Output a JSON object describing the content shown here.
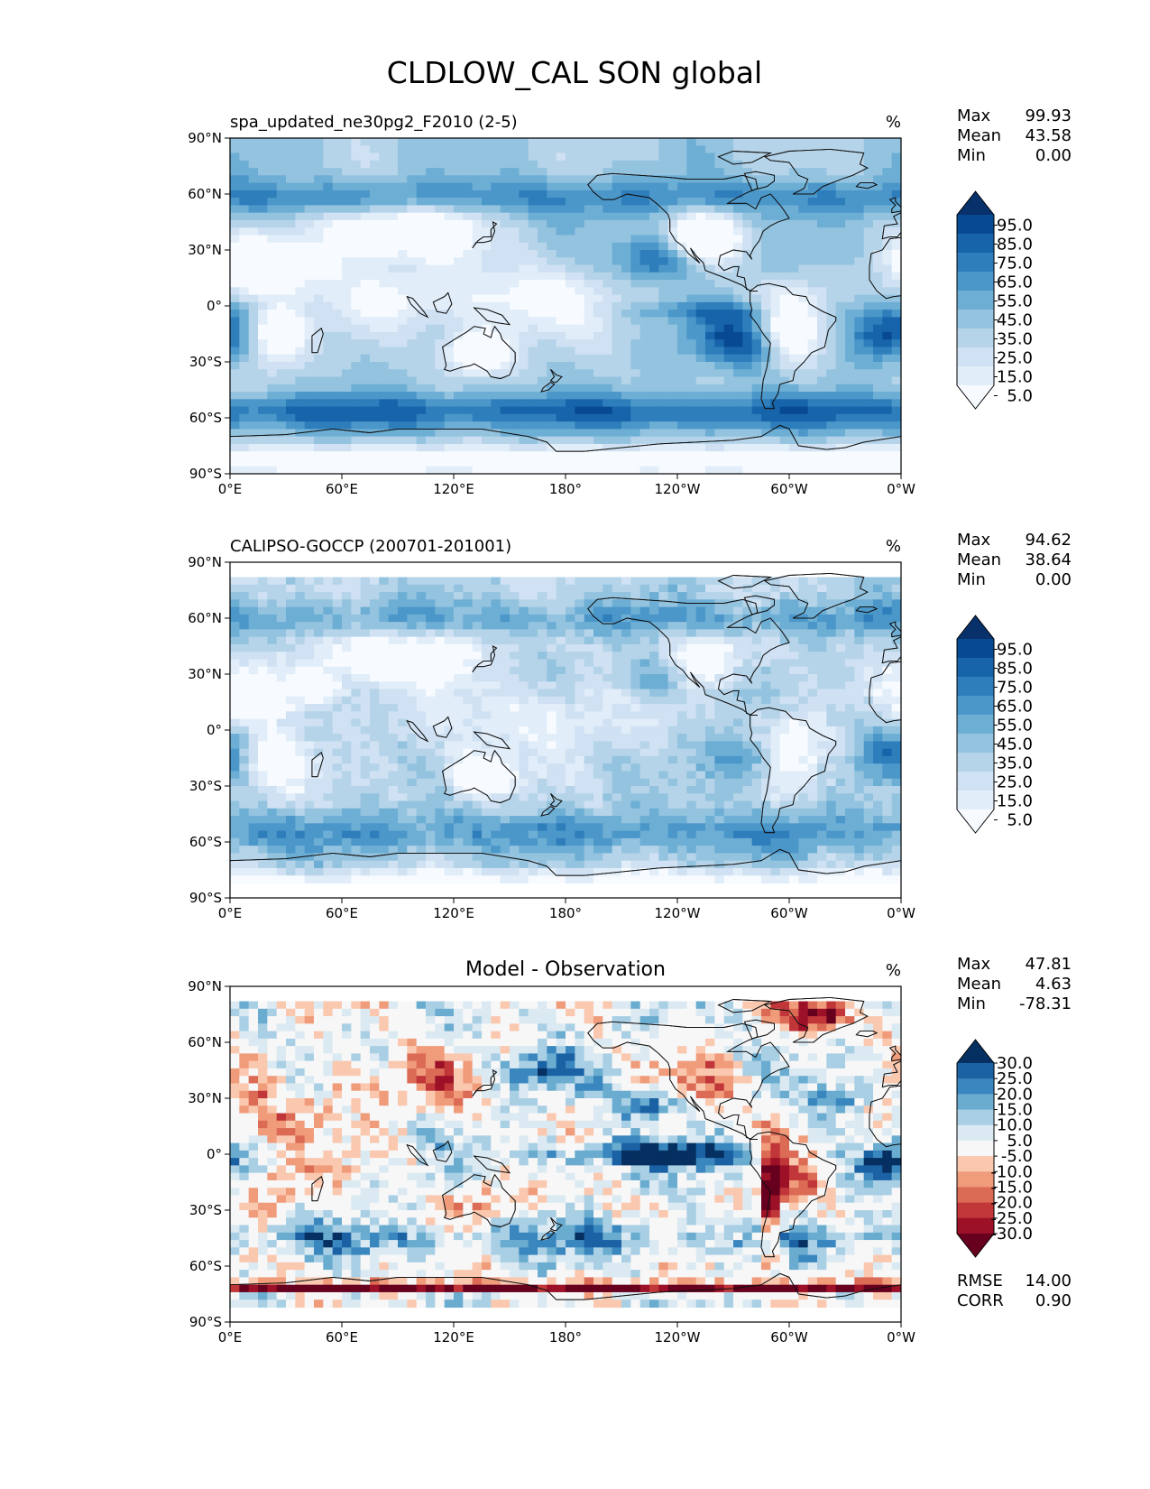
{
  "figure": {
    "title": "CLDLOW_CAL SON global"
  },
  "palettes": {
    "blues": [
      "#f7fbff",
      "#e1edf8",
      "#cfe1f2",
      "#b5d4e9",
      "#93c3df",
      "#6daed5",
      "#4b97c9",
      "#2f7ebc",
      "#1764ab",
      "#084a91",
      "#08306b"
    ],
    "rdbu": [
      "#67001f",
      "#9c1127",
      "#c13639",
      "#db6b55",
      "#f09c7b",
      "#fac8af",
      "#f7f7f7",
      "#dbeaf2",
      "#a9cfe5",
      "#6aacd0",
      "#3a87bf",
      "#1b62a5",
      "#053061"
    ],
    "land_line": "#111111"
  },
  "chart_data": [
    {
      "type": "heatmap",
      "id": "model",
      "title_left": "spa_updated_ne30pg2_F2010 (2-5)",
      "title_center": "",
      "units": "%",
      "x_ticks": [
        "0°E",
        "60°E",
        "120°E",
        "180°",
        "120°W",
        "60°W",
        "0°W"
      ],
      "y_ticks": [
        "90°N",
        "60°N",
        "30°N",
        "0°",
        "30°S",
        "60°S",
        "90°S"
      ],
      "xlim": [
        0,
        360
      ],
      "ylim": [
        -90,
        90
      ],
      "stats": [
        {
          "label": "Max",
          "value": "99.93"
        },
        {
          "label": "Mean",
          "value": "43.58"
        },
        {
          "label": "Min",
          "value": "0.00"
        }
      ],
      "colorbar": {
        "palette": "blues",
        "labels": [
          "95.0",
          "85.0",
          "75.0",
          "65.0",
          "55.0",
          "45.0",
          "35.0",
          "25.0",
          "15.0",
          "5.0"
        ],
        "extend": "both"
      },
      "footer_stats": [],
      "mode": "model",
      "lat_extent": [
        -90,
        90
      ]
    },
    {
      "type": "heatmap",
      "id": "obs",
      "title_left": "CALIPSO-GOCCP (200701-201001)",
      "title_center": "",
      "units": "%",
      "x_ticks": [
        "0°E",
        "60°E",
        "120°E",
        "180°",
        "120°W",
        "60°W",
        "0°W"
      ],
      "y_ticks": [
        "90°N",
        "60°N",
        "30°N",
        "0°",
        "30°S",
        "60°S",
        "90°S"
      ],
      "xlim": [
        0,
        360
      ],
      "ylim": [
        -90,
        90
      ],
      "stats": [
        {
          "label": "Max",
          "value": "94.62"
        },
        {
          "label": "Mean",
          "value": "38.64"
        },
        {
          "label": "Min",
          "value": "0.00"
        }
      ],
      "colorbar": {
        "palette": "blues",
        "labels": [
          "95.0",
          "85.0",
          "75.0",
          "65.0",
          "55.0",
          "45.0",
          "35.0",
          "25.0",
          "15.0",
          "5.0"
        ],
        "extend": "both"
      },
      "footer_stats": [],
      "mode": "obs",
      "lat_extent": [
        -82,
        82
      ]
    },
    {
      "type": "heatmap",
      "id": "diff",
      "title_left": "",
      "title_center": "Model - Observation",
      "units": "%",
      "x_ticks": [
        "0°E",
        "60°E",
        "120°E",
        "180°",
        "120°W",
        "60°W",
        "0°W"
      ],
      "y_ticks": [
        "90°N",
        "60°N",
        "30°N",
        "0°",
        "30°S",
        "60°S",
        "90°S"
      ],
      "xlim": [
        0,
        360
      ],
      "ylim": [
        -90,
        90
      ],
      "stats": [
        {
          "label": "Max",
          "value": "47.81"
        },
        {
          "label": "Mean",
          "value": "4.63"
        },
        {
          "label": "Min",
          "value": "-78.31"
        }
      ],
      "colorbar": {
        "palette": "rdbu",
        "labels": [
          "30.0",
          "25.0",
          "20.0",
          "15.0",
          "10.0",
          "5.0",
          "-5.0",
          "-10.0",
          "-15.0",
          "-20.0",
          "-25.0",
          "-30.0"
        ],
        "extend": "both"
      },
      "footer_stats": [
        {
          "label": "RMSE",
          "value": "14.00"
        },
        {
          "label": "CORR",
          "value": "0.90"
        }
      ],
      "mode": "diff",
      "lat_extent": [
        -82,
        82
      ]
    }
  ]
}
